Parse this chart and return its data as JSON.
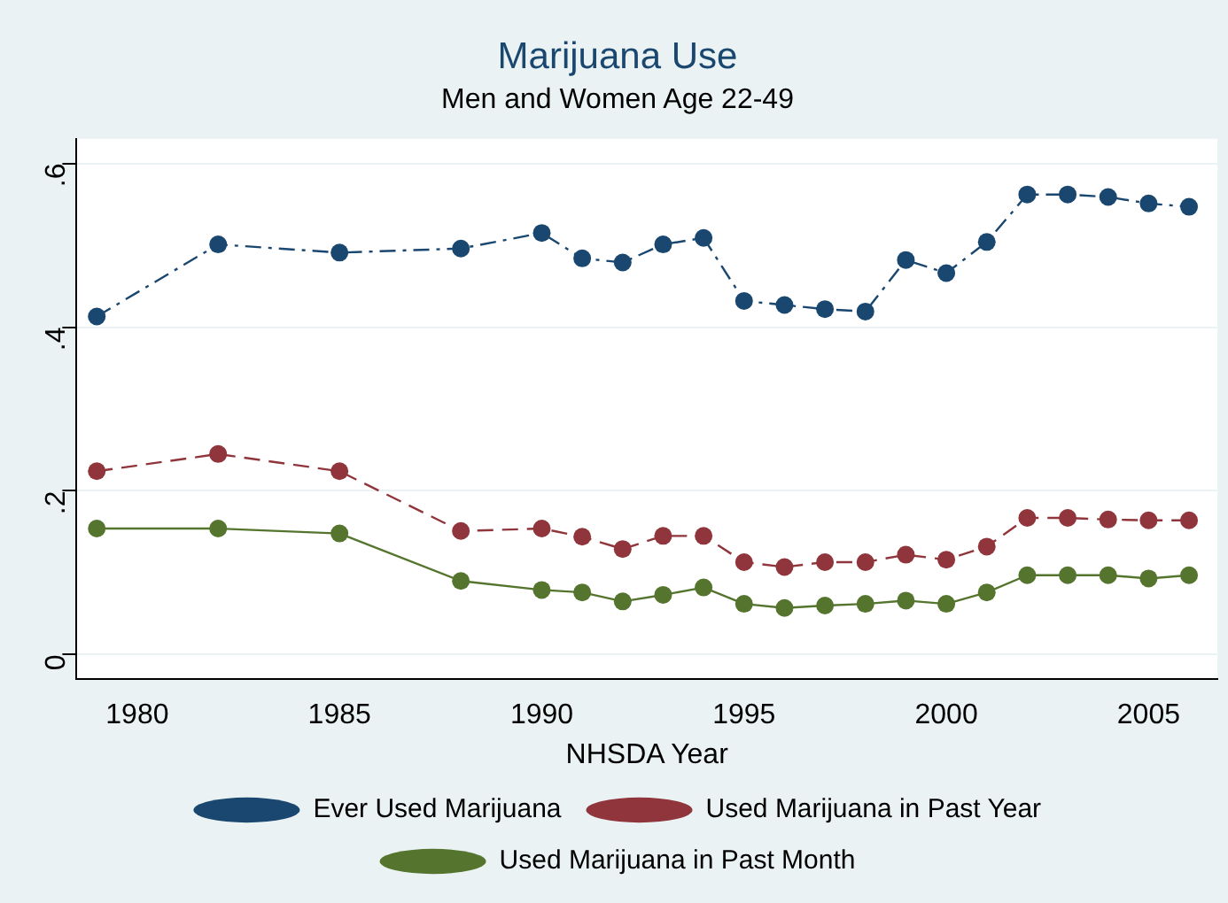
{
  "chart_data": {
    "type": "line",
    "title": "Marijuana Use",
    "subtitle": "Men and Women Age 22-49",
    "xlabel": "NHSDA Year",
    "x": [
      1979,
      1982,
      1985,
      1988,
      1990,
      1991,
      1992,
      1993,
      1994,
      1995,
      1996,
      1997,
      1998,
      1999,
      2000,
      2001,
      2002,
      2003,
      2004,
      2005,
      2006
    ],
    "series": [
      {
        "name": "Ever Used Marijuana",
        "color": "#1a476f",
        "line_style": "dashed",
        "values": [
          0.413,
          0.501,
          0.491,
          0.496,
          0.515,
          0.484,
          0.479,
          0.501,
          0.509,
          0.432,
          0.427,
          0.422,
          0.419,
          0.482,
          0.466,
          0.504,
          0.562,
          0.562,
          0.559,
          0.551,
          0.547
        ]
      },
      {
        "name": "Used Marijuana in Past Year",
        "color": "#90353b",
        "line_style": "dashed",
        "values": [
          0.224,
          0.245,
          0.224,
          0.151,
          0.154,
          0.144,
          0.129,
          0.145,
          0.145,
          0.113,
          0.107,
          0.113,
          0.113,
          0.122,
          0.116,
          0.132,
          0.167,
          0.167,
          0.165,
          0.164,
          0.164
        ]
      },
      {
        "name": "Used Marijuana in Past Month",
        "color": "#55752f",
        "line_style": "solid",
        "values": [
          0.154,
          0.154,
          0.148,
          0.09,
          0.079,
          0.076,
          0.065,
          0.073,
          0.082,
          0.062,
          0.057,
          0.06,
          0.062,
          0.066,
          0.062,
          0.076,
          0.097,
          0.097,
          0.097,
          0.093,
          0.097
        ]
      }
    ],
    "xlim": [
      1978.5,
      2006.7
    ],
    "xticks": [
      1980,
      1985,
      1990,
      1995,
      2000,
      2005
    ],
    "ylim": [
      -0.03,
      0.63
    ],
    "yticks": [
      {
        "value": 0,
        "label": "0"
      },
      {
        "value": 0.2,
        "label": ".2"
      },
      {
        "value": 0.4,
        "label": ".4"
      },
      {
        "value": 0.6,
        "label": ".6"
      }
    ],
    "grid": "y",
    "legend": "bottom",
    "marker": "circle"
  }
}
